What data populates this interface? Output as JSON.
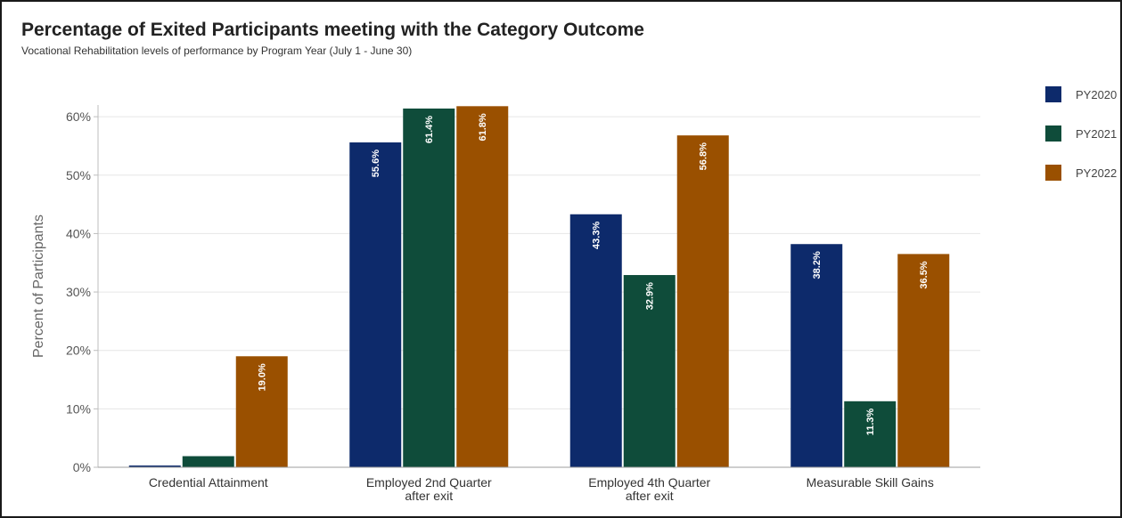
{
  "chart_data": {
    "type": "bar",
    "title": "Percentage of Exited Participants meeting with the Category Outcome",
    "subtitle": "Vocational Rehabilitation levels of performance by Program Year (July 1 - June 30)",
    "ylabel": "Percent of Participants",
    "ylim": [
      0,
      62
    ],
    "yticks": [
      "0%",
      "10%",
      "20%",
      "30%",
      "40%",
      "50%",
      "60%"
    ],
    "yticks_values": [
      0,
      10,
      20,
      30,
      40,
      50,
      60
    ],
    "grid": true,
    "legend_position": "right",
    "categories": [
      [
        "Credential Attainment"
      ],
      [
        "Employed 2nd Quarter",
        "after exit"
      ],
      [
        "Employed 4th Quarter",
        "after exit"
      ],
      [
        "Measurable Skill Gains"
      ]
    ],
    "series": [
      {
        "name": "PY2020",
        "color": "#0d2a6b",
        "values": [
          0.3,
          55.6,
          43.3,
          38.2
        ],
        "labels": [
          "",
          "55.6%",
          "43.3%",
          "38.2%"
        ]
      },
      {
        "name": "PY2021",
        "color": "#0f4c3a",
        "values": [
          1.9,
          61.4,
          32.9,
          11.3
        ],
        "labels": [
          "",
          "61.4%",
          "32.9%",
          "11.3%"
        ]
      },
      {
        "name": "PY2022",
        "color": "#9a5000",
        "values": [
          19.0,
          61.8,
          56.8,
          36.5
        ],
        "labels": [
          "19.0%",
          "61.8%",
          "56.8%",
          "36.5%"
        ]
      }
    ]
  }
}
